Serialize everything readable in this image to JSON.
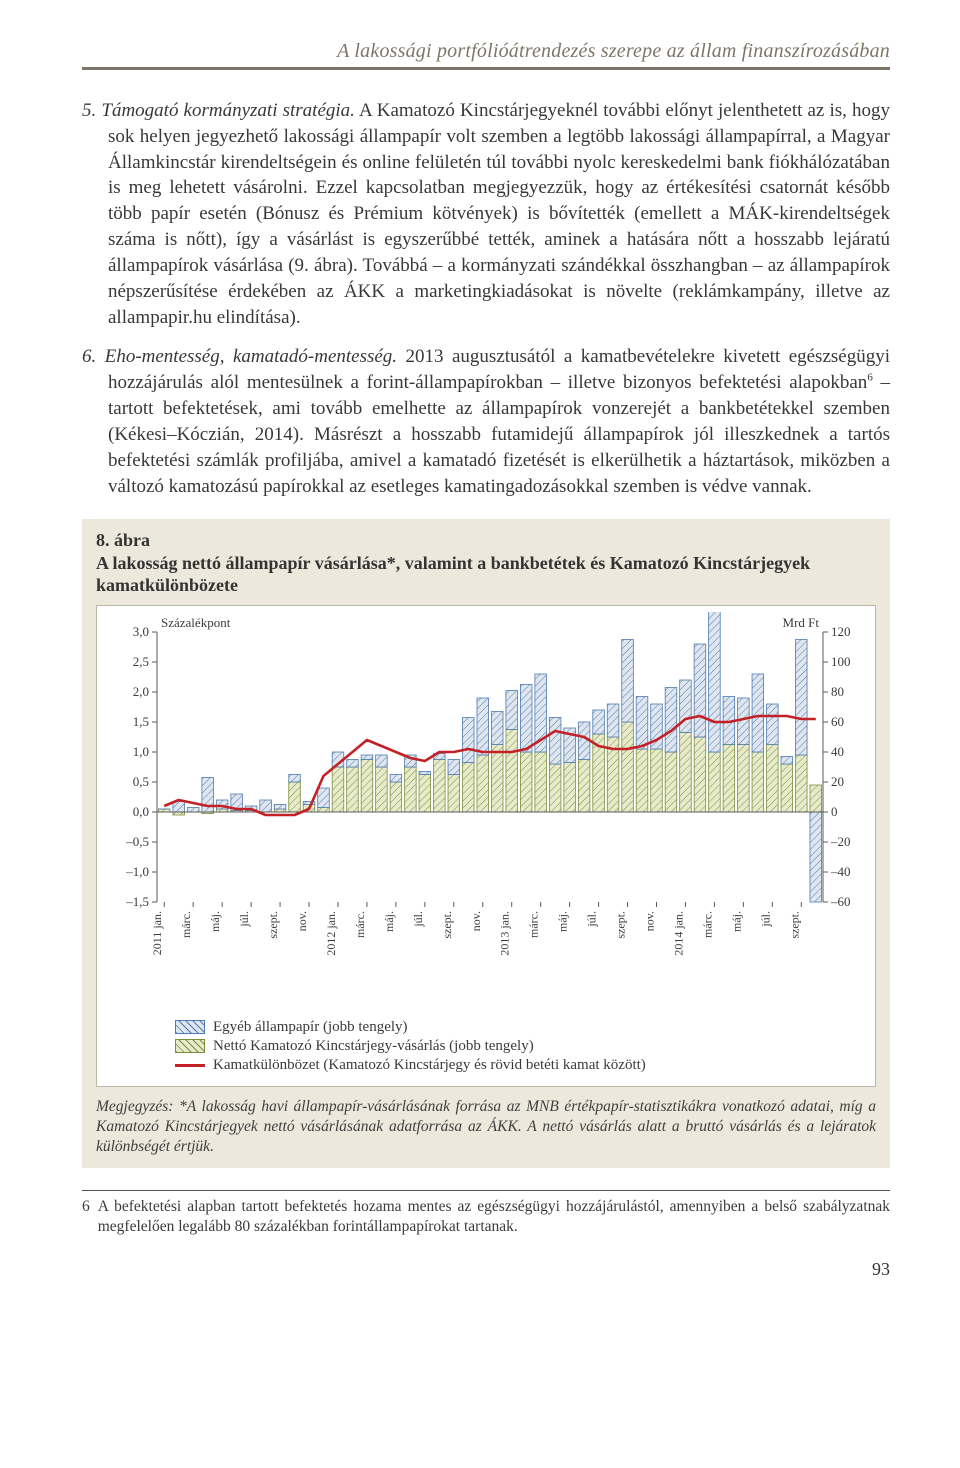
{
  "running_head": "A lakossági portfólióátrendezés szerepe az állam finanszírozásában",
  "para5_num": "5. ",
  "para5_lead": "Támogató kormányzati stratégia.",
  "para5_body": " A Kamatozó Kincstárjegyeknél további előnyt jelenthetett az is, hogy sok helyen jegyezhető lakossági állampapír volt szemben a legtöbb lakossági állampapírral, a Magyar Államkincstár kirendeltségein és online felületén túl további nyolc kereskedelmi bank fiókhálózatában is meg lehetett vásárolni. Ezzel kapcsolatban megjegyezzük, hogy az értékesítési csatornát később több papír esetén (Bónusz és Prémium kötvények) is bővítették (emellett a MÁK-kirendeltségek száma is nőtt), így a vásárlást is egyszerűbbé tették, aminek a hatására nőtt a hosszabb lejáratú állampapírok vásárlása (9. ábra). Továbbá – a kormányzati szándékkal összhangban – az állampapírok népszerűsítése érdekében az ÁKK a marketingkiadásokat is növelte (reklámkampány, illetve az allampapir.hu elindítása).",
  "para6_num": "6. ",
  "para6_lead": "Eho-mentesség, kamatadó-mentesség.",
  "para6_body": " 2013 augusztusától a kamatbevételekre kivetett egészségügyi hozzájárulás alól mentesülnek a forint-állampapírokban – illetve bizonyos befektetési alapokban",
  "para6_body2": " – tartott befektetések, ami tovább emelhette az állampapírok vonzerejét a bankbetétekkel szemben (Kékesi–Kóczián, 2014). Másrészt a hosszabb futamidejű állampapírok jól illeszkednek a tartós befektetési számlák profiljába, amivel a kamatadó fizetését is elkerülhetik a háztartások, miközben a változó kamatozású papírokkal az esetleges kamatingadozásokkal szemben is védve vannak.",
  "para6_sup": "6",
  "fig": {
    "num": "8. ábra",
    "title": "A lakosság nettó állampapír vásárlása*, valamint a bankbetétek és Kamatozó Kincstárjegyek kamatkülönbözete",
    "ylabel_left": "Százalékpont",
    "ylabel_right": "Mrd Ft",
    "y_left": {
      "min": -1.5,
      "max": 3.0,
      "step": 0.5,
      "ticks": [
        "3,0",
        "2,5",
        "2,0",
        "1,5",
        "1,0",
        "0,5",
        "0,0",
        "–0,5",
        "–1,0",
        "–1,5"
      ]
    },
    "y_right": {
      "min": -60,
      "max": 120,
      "step": 20,
      "ticks": [
        "120",
        "100",
        "80",
        "60",
        "40",
        "20",
        "0",
        "–20",
        "–40",
        "–60"
      ]
    },
    "x_labels": [
      "2011 jan.",
      "márc.",
      "máj.",
      "júl.",
      "szept.",
      "nov.",
      "2012 jan.",
      "márc.",
      "máj.",
      "júl.",
      "szept.",
      "nov.",
      "2013 jan.",
      "márc.",
      "máj.",
      "júl.",
      "szept.",
      "nov.",
      "2014 jan.",
      "márc.",
      "máj.",
      "júl.",
      "szept."
    ],
    "bars_blue": [
      0,
      7,
      3,
      23,
      6,
      11,
      3,
      8,
      3,
      5,
      2,
      13,
      10,
      5,
      3,
      8,
      5,
      8,
      2,
      4,
      10,
      30,
      38,
      22,
      26,
      45,
      52,
      31,
      23,
      25,
      16,
      22,
      55,
      35,
      30,
      43,
      35,
      62,
      112,
      32,
      31,
      52,
      27,
      5,
      77,
      -60
    ],
    "bars_green": [
      2,
      -2,
      0,
      -1,
      2,
      1,
      1,
      0,
      2,
      20,
      5,
      3,
      30,
      30,
      35,
      30,
      20,
      30,
      25,
      35,
      25,
      33,
      38,
      45,
      55,
      40,
      40,
      32,
      33,
      35,
      52,
      50,
      60,
      42,
      42,
      40,
      53,
      50,
      40,
      45,
      45,
      40,
      45,
      32,
      38,
      18
    ],
    "line": [
      0.1,
      0.2,
      0.15,
      0.1,
      0.1,
      0.05,
      0.05,
      -0.05,
      -0.05,
      -0.05,
      0.05,
      0.6,
      0.8,
      1.0,
      1.2,
      1.1,
      1.0,
      0.9,
      0.85,
      1.0,
      1.0,
      1.05,
      1.0,
      1.0,
      1.0,
      1.05,
      1.2,
      1.35,
      1.3,
      1.25,
      1.1,
      1.05,
      1.05,
      1.1,
      1.2,
      1.35,
      1.55,
      1.6,
      1.5,
      1.5,
      1.55,
      1.6,
      1.6,
      1.6,
      1.55,
      1.55
    ],
    "colors": {
      "blue_fill": "#dfe6ef",
      "blue_stroke": "#4e7aaf",
      "green_fill": "#e7eacb",
      "green_stroke": "#7b8f3d",
      "line": "#c42127",
      "baseline": "#5b5b5b",
      "grid": "#c9c9c9",
      "tick_text": "#3b3b3b"
    },
    "legend": {
      "a": "Egyéb állampapír (jobb tengely)",
      "b": "Nettó Kamatozó Kincstárjegy-vásárlás (jobb tengely)",
      "c": "Kamatkülönbözet (Kamatozó Kincstárjegy és rövid betéti kamat között)"
    }
  },
  "note": "Megjegyzés: *A lakosság havi állampapír-vásárlásának forrása az MNB értékpapír-statisztikákra vonatkozó adatai, míg a Kamatozó Kincstárjegyek nettó vásárlásának adatforrása az ÁKK. A nettó vásárlás alatt a bruttó vásárlás és a lejáratok különbségét értjük.",
  "footnote_num": "6",
  "footnote": "A befektetési alapban tartott befektetés hozama mentes az egészségügyi hozzájárulástól, amennyiben a belső szabályzatnak megfelelően legalább 80 százalékban forintállampapírokat tartanak.",
  "pagenum": "93"
}
